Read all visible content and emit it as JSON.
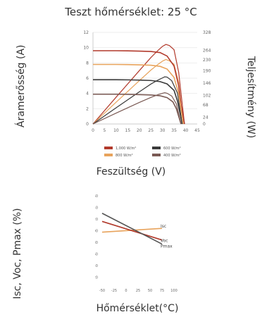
{
  "chart_data": [
    {
      "type": "line",
      "title": "Teszt hőmérséklet: 25 °C",
      "xlabel": "Feszültség (V)",
      "ylabel": "Áramerősség (A)",
      "y2label": "Teljesítmény  (W)",
      "xlim": [
        0,
        45
      ],
      "ylim": [
        0,
        12
      ],
      "y2lim": [
        0,
        328
      ],
      "x_ticks": [
        "0",
        "5",
        "10",
        "15",
        "20",
        "25",
        "30",
        "35",
        "40",
        "45"
      ],
      "y_ticks": [
        "0",
        "2",
        "4",
        "6",
        "8",
        "10",
        "12"
      ],
      "y2_ticks": [
        "0",
        "24",
        "68",
        "102",
        "146",
        "190",
        "230",
        "264",
        "328"
      ],
      "legend": [
        "1,000 W/m²",
        "800 W/m²",
        "600 W/m²",
        "400 W/m²"
      ],
      "colors": [
        "#b23a2c",
        "#e8a35c",
        "#3a3a3a",
        "#7a5a54"
      ],
      "series_current": [
        {
          "name": "1,000 W/m²",
          "x": [
            0,
            5,
            10,
            15,
            20,
            25,
            29,
            32,
            35,
            37,
            38,
            39.5
          ],
          "y": [
            9.6,
            9.6,
            9.6,
            9.58,
            9.55,
            9.5,
            9.35,
            8.9,
            7.6,
            5.0,
            2.5,
            0
          ]
        },
        {
          "name": "800 W/m²",
          "x": [
            0,
            5,
            10,
            15,
            20,
            25,
            29,
            32,
            35,
            37,
            38,
            39
          ],
          "y": [
            7.8,
            7.8,
            7.8,
            7.78,
            7.75,
            7.7,
            7.55,
            7.2,
            6.1,
            4.0,
            2.0,
            0
          ]
        },
        {
          "name": "600 W/m²",
          "x": [
            0,
            5,
            10,
            15,
            20,
            25,
            29,
            32,
            35,
            36.5,
            37.5,
            38.5
          ],
          "y": [
            5.8,
            5.8,
            5.8,
            5.78,
            5.75,
            5.7,
            5.55,
            5.25,
            4.4,
            3.0,
            1.5,
            0
          ]
        },
        {
          "name": "400 W/m²",
          "x": [
            0,
            5,
            10,
            15,
            20,
            25,
            29,
            32,
            34.5,
            36,
            37,
            38
          ],
          "y": [
            3.9,
            3.9,
            3.9,
            3.88,
            3.85,
            3.8,
            3.7,
            3.45,
            2.9,
            2.0,
            1.0,
            0
          ]
        }
      ],
      "series_power": [
        {
          "name": "1,000 W/m²",
          "x": [
            0,
            10,
            20,
            25,
            28,
            30,
            31.5,
            33,
            35,
            37,
            39.5
          ],
          "y": [
            0,
            96,
            191,
            238,
            263,
            278,
            285,
            281,
            266,
            185,
            0
          ]
        },
        {
          "name": "800 W/m²",
          "x": [
            0,
            10,
            20,
            25,
            28,
            30,
            31.5,
            33,
            35,
            37,
            39
          ],
          "y": [
            0,
            78,
            155,
            193,
            213,
            225,
            231,
            226,
            214,
            148,
            0
          ]
        },
        {
          "name": "600 W/m²",
          "x": [
            0,
            10,
            20,
            25,
            28,
            30,
            31,
            32,
            34,
            36.5,
            38.5
          ],
          "y": [
            0,
            58,
            115,
            143,
            157,
            165,
            169,
            168,
            155,
            110,
            0
          ]
        },
        {
          "name": "400 W/m²",
          "x": [
            0,
            10,
            20,
            25,
            28,
            30,
            31,
            32,
            34,
            36,
            38
          ],
          "y": [
            0,
            39,
            77,
            95,
            105,
            110,
            112,
            110,
            100,
            72,
            0
          ]
        }
      ]
    },
    {
      "type": "line",
      "xlabel": "Hőmérséklet(°C)",
      "ylabel": "Isc, Voc, Pmax (%)",
      "xlim": [
        -50,
        100
      ],
      "ylim": [
        0,
        160
      ],
      "x_ticks": [
        "-50",
        "-25",
        "0",
        "25",
        "50",
        "75",
        "100"
      ],
      "y_ticks": [
        "20",
        "40",
        "60",
        "80",
        "100",
        "120",
        "140",
        "160"
      ],
      "series": [
        {
          "name": "Isc",
          "color": "#e8a35c",
          "x": [
            -50,
            75
          ],
          "y": [
            97.5,
            104
          ]
        },
        {
          "name": "Voc",
          "color": "#b23a2c",
          "x": [
            -50,
            75
          ],
          "y": [
            116,
            84
          ]
        },
        {
          "name": "Pmax",
          "color": "#555555",
          "x": [
            -50,
            75
          ],
          "y": [
            130,
            77
          ]
        }
      ]
    }
  ]
}
